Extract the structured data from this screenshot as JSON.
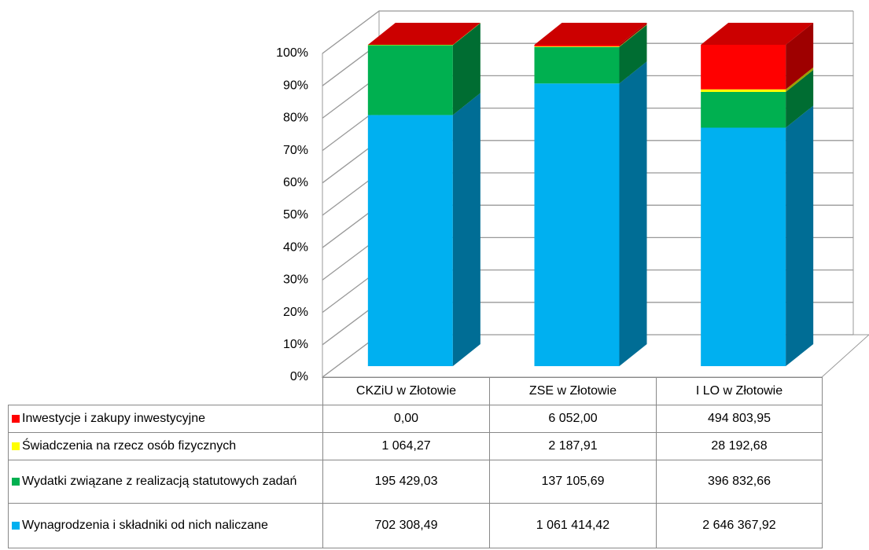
{
  "chart_data": {
    "type": "bar",
    "stacking": "percent",
    "categories": [
      "CKZiU w Złotowie",
      "ZSE w Złotowie",
      "I LO w Złotowie"
    ],
    "series": [
      {
        "name": "Inwestycje i zakupy inwestycyjne",
        "color": "#ff0000",
        "values": [
          0,
          6052,
          494803.95
        ],
        "value_labels": [
          "0,00",
          "6 052,00",
          "494 803,95"
        ]
      },
      {
        "name": "Świadczenia na rzecz osób fizycznych",
        "color": "#ffff00",
        "values": [
          1064.27,
          2187.91,
          28192.68
        ],
        "value_labels": [
          "1 064,27",
          "2 187,91",
          "28 192,68"
        ]
      },
      {
        "name": "Wydatki związane z realizacją statutowych zadań",
        "color": "#00b050",
        "values": [
          195429.03,
          137105.69,
          396832.66
        ],
        "value_labels": [
          "195 429,03",
          "137 105,69",
          "396 832,66"
        ]
      },
      {
        "name": "Wynagrodzenia i składniki od nich naliczane",
        "color": "#00b0f0",
        "values": [
          702308.49,
          1061414.42,
          2646367.92
        ],
        "value_labels": [
          "702 308,49",
          "1 061 414,42",
          "2 646 367,92"
        ]
      }
    ],
    "ylim": [
      0,
      100
    ],
    "yticks": [
      {
        "value": 0,
        "label": "0%"
      },
      {
        "value": 10,
        "label": "10%"
      },
      {
        "value": 20,
        "label": "20%"
      },
      {
        "value": 30,
        "label": "30%"
      },
      {
        "value": 40,
        "label": "40%"
      },
      {
        "value": 50,
        "label": "50%"
      },
      {
        "value": 60,
        "label": "60%"
      },
      {
        "value": 70,
        "label": "70%"
      },
      {
        "value": 80,
        "label": "80%"
      },
      {
        "value": 90,
        "label": "90%"
      },
      {
        "value": 100,
        "label": "100%"
      }
    ],
    "grid": true
  }
}
